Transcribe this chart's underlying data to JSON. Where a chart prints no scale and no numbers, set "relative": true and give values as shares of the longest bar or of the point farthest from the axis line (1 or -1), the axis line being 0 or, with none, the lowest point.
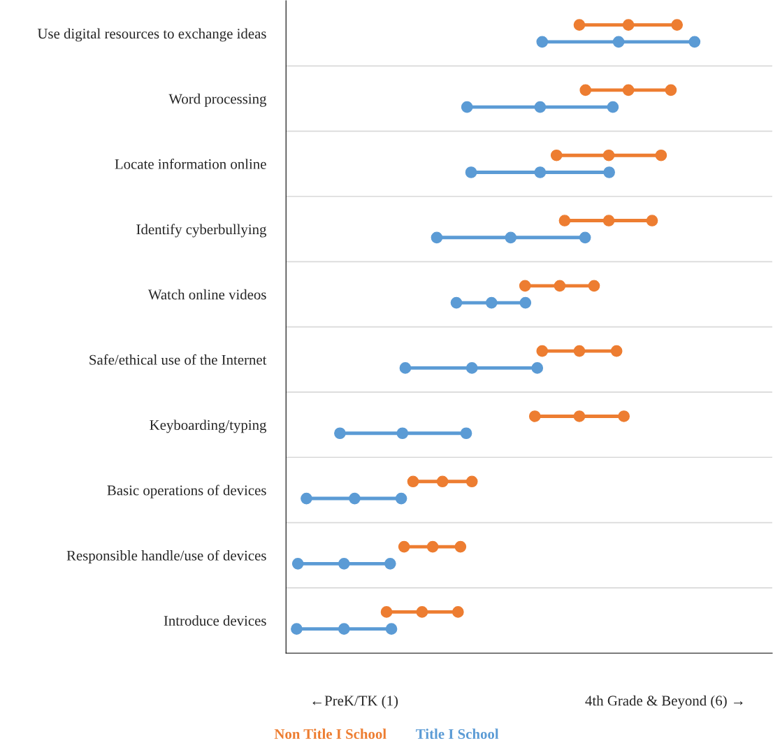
{
  "chart_data": {
    "type": "scatter",
    "orientation": "horizontal",
    "relative": true,
    "marker": "circle",
    "categories": [
      "Use digital resources to exchange ideas",
      "Word processing",
      "Locate information online",
      "Identify cyberbullying",
      "Watch online videos",
      "Safe/ethical use of the Internet",
      "Keyboarding/typing",
      "Basic operations of devices",
      "Responsible handle/use of devices",
      "Introduce devices"
    ],
    "series": [
      {
        "name": "Non Title I School",
        "color": "#ed7d31",
        "values": [
          0.718,
          0.733,
          0.662,
          0.682,
          0.585,
          0.627,
          0.609,
          0.311,
          0.289,
          0.246
        ]
      },
      {
        "color": "#ed7d31",
        "values": [
          0.838,
          0.838,
          0.79,
          0.79,
          0.67,
          0.718,
          0.718,
          0.383,
          0.359,
          0.333
        ]
      },
      {
        "color": "#ed7d31",
        "values": [
          0.957,
          0.942,
          0.918,
          0.896,
          0.754,
          0.809,
          0.827,
          0.455,
          0.427,
          0.421
        ]
      },
      {
        "name": "Title I School",
        "color": "#5b9bd5",
        "values": [
          0.627,
          0.443,
          0.453,
          0.369,
          0.417,
          0.292,
          0.132,
          0.05,
          0.029,
          0.026
        ]
      },
      {
        "color": "#5b9bd5",
        "values": [
          0.814,
          0.622,
          0.622,
          0.55,
          0.503,
          0.455,
          0.285,
          0.168,
          0.142,
          0.142
        ]
      },
      {
        "color": "#5b9bd5",
        "values": [
          1.0,
          0.8,
          0.791,
          0.732,
          0.586,
          0.615,
          0.441,
          0.282,
          0.255,
          0.258
        ]
      }
    ],
    "annotations": [
      "←PreK/TK (1)",
      "4th Grade & Beyond (6) →"
    ],
    "grid": "y",
    "legend": "bottom"
  }
}
